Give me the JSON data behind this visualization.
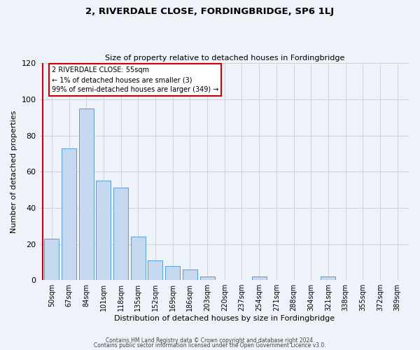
{
  "title": "2, RIVERDALE CLOSE, FORDINGBRIDGE, SP6 1LJ",
  "subtitle": "Size of property relative to detached houses in Fordingbridge",
  "xlabel": "Distribution of detached houses by size in Fordingbridge",
  "ylabel": "Number of detached properties",
  "footer_line1": "Contains HM Land Registry data © Crown copyright and database right 2024.",
  "footer_line2": "Contains public sector information licensed under the Open Government Licence v3.0.",
  "bin_labels": [
    "50sqm",
    "67sqm",
    "84sqm",
    "101sqm",
    "118sqm",
    "135sqm",
    "152sqm",
    "169sqm",
    "186sqm",
    "203sqm",
    "220sqm",
    "237sqm",
    "254sqm",
    "271sqm",
    "288sqm",
    "304sqm",
    "321sqm",
    "338sqm",
    "355sqm",
    "372sqm",
    "389sqm"
  ],
  "bar_values": [
    23,
    73,
    95,
    55,
    51,
    24,
    11,
    8,
    6,
    2,
    0,
    0,
    2,
    0,
    0,
    0,
    2,
    0,
    0,
    0,
    0
  ],
  "bar_color": "#c5d8f0",
  "bar_edge_color": "#5a9fd4",
  "annotation_line1": "2 RIVERDALE CLOSE: 55sqm",
  "annotation_line2": "← 1% of detached houses are smaller (3)",
  "annotation_line3": "99% of semi-detached houses are larger (349) →",
  "annotation_box_edge_color": "#cc0000",
  "red_line_color": "#cc0000",
  "ylim": [
    0,
    120
  ],
  "yticks": [
    0,
    20,
    40,
    60,
    80,
    100,
    120
  ],
  "background_color": "#eef2f9",
  "plot_background_color": "#eef2f9",
  "grid_color": "#d0d0d8"
}
